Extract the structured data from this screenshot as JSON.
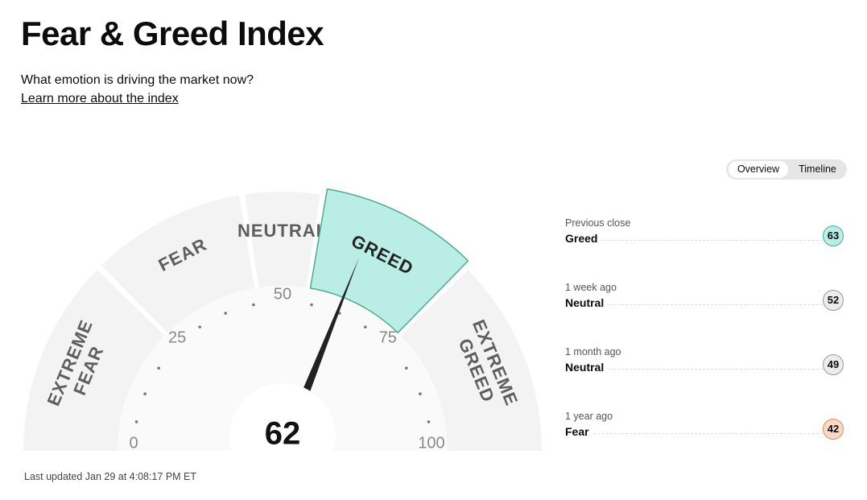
{
  "header": {
    "title": "Fear & Greed Index",
    "subtitle": "What emotion is driving the market now?",
    "link": "Learn more about the index"
  },
  "toggle": [
    "Overview",
    "Timeline"
  ],
  "gauge": {
    "value": 62,
    "range": [
      0,
      100
    ],
    "ticks": [
      0,
      25,
      50,
      75,
      100
    ],
    "segments": [
      {
        "label": [
          "EXTREME",
          "FEAR"
        ],
        "from": 0,
        "to": 25
      },
      {
        "label": [
          "FEAR"
        ],
        "from": 25,
        "to": 45
      },
      {
        "label": [
          "NEUTRAL"
        ],
        "from": 45,
        "to": 55
      },
      {
        "label": [
          "GREED"
        ],
        "from": 55,
        "to": 75
      },
      {
        "label": [
          "EXTREME",
          "GREED"
        ],
        "from": 75,
        "to": 100
      }
    ]
  },
  "last_updated": "Last updated Jan 29 at 4:08:17 PM ET",
  "history": [
    {
      "label": "Previous close",
      "status": "Greed",
      "value": 63,
      "color": "#b9ede6",
      "border": "#4cae8c"
    },
    {
      "label": "1 week ago",
      "status": "Neutral",
      "value": 52,
      "color": "#ececec",
      "border": "#9a9a9a"
    },
    {
      "label": "1 month ago",
      "status": "Neutral",
      "value": 49,
      "color": "#ececec",
      "border": "#9a9a9a"
    },
    {
      "label": "1 year ago",
      "status": "Fear",
      "value": 42,
      "color": "#fcd9c6",
      "border": "#e58a5c"
    }
  ]
}
